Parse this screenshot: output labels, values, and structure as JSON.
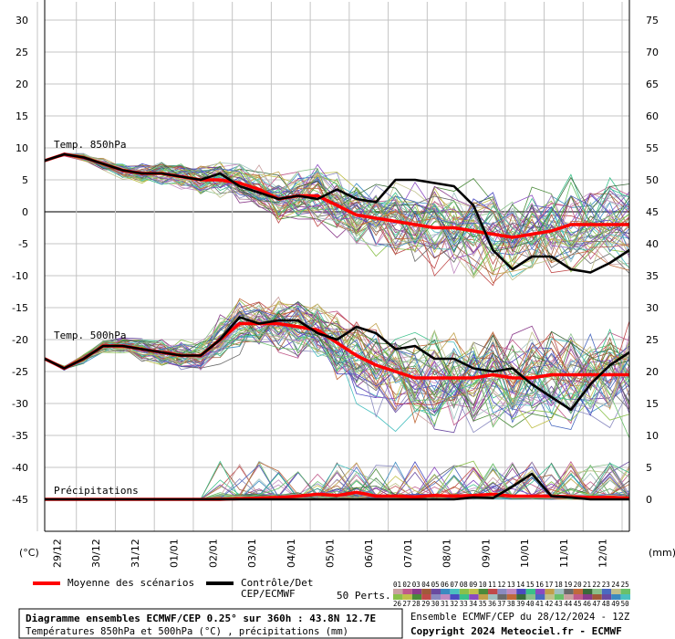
{
  "chart_data": {
    "type": "line",
    "title": "Diagramme ensembles ECMWF/CEP 0.25° sur 360h : 43.8N 12.7E",
    "subtitle": "Températures 850hPa et 500hPa (°C) , précipitations (mm)",
    "run_info": "Ensemble ECMWF/CEP du 28/12/2024 - 12Z",
    "copyright": "Copyright 2024 Meteociel.fr - ECMWF",
    "left_axis": {
      "label": "(°C)",
      "ticks": [
        30,
        25,
        20,
        15,
        10,
        5,
        0,
        -5,
        -10,
        -15,
        -20,
        -25,
        -30,
        -35,
        -40,
        -45
      ],
      "range": [
        -45,
        30
      ]
    },
    "right_axis": {
      "label": "(mm)",
      "ticks": [
        75,
        70,
        65,
        60,
        55,
        50,
        45,
        40,
        35,
        30,
        25,
        20,
        15,
        10,
        5,
        0
      ],
      "range": [
        0,
        75
      ]
    },
    "x_labels": [
      "29/12",
      "30/12",
      "31/12",
      "01/01",
      "02/01",
      "03/01",
      "04/01",
      "05/01",
      "06/01",
      "07/01",
      "08/01",
      "09/01",
      "10/01",
      "11/01",
      "12/01"
    ],
    "x_range": [
      0,
      15
    ],
    "grid": true,
    "panel_labels": {
      "t850": "Temp. 850hPa",
      "t500": "Temp. 500hPa",
      "precip": "Précipitations"
    },
    "legend": {
      "mean_label": "Moyenne des scénarios",
      "mean_color": "#ff0000",
      "control_label_1": "Contrôle/Det",
      "control_label_2": "CEP/ECMWF",
      "control_color": "#000000",
      "perts_label": "50 Perts.",
      "perts_row1": [
        "01",
        "02",
        "03",
        "04",
        "05",
        "06",
        "07",
        "08",
        "09",
        "10",
        "11",
        "12",
        "13",
        "14",
        "15",
        "16",
        "17",
        "18",
        "19",
        "20",
        "21",
        "22",
        "23",
        "24",
        "25"
      ],
      "perts_row2": [
        "26",
        "27",
        "28",
        "29",
        "30",
        "31",
        "32",
        "33",
        "34",
        "35",
        "36",
        "37",
        "38",
        "39",
        "40",
        "41",
        "42",
        "43",
        "44",
        "45",
        "46",
        "47",
        "48",
        "49",
        "50"
      ],
      "perts_colors": [
        "#c9a0a0",
        "#c05a8a",
        "#8a3a8a",
        "#a05a3a",
        "#6a4aa0",
        "#3a8ac0",
        "#4ac0c0",
        "#8ac04a",
        "#c0c04a",
        "#4a8a3a",
        "#c04a4a",
        "#8a8ac0",
        "#c08ac0",
        "#4a4ac0",
        "#3ac08a",
        "#8a4ac0",
        "#c0a04a",
        "#a0c0c0",
        "#6a6a6a",
        "#c06a3a",
        "#3a6a3a",
        "#8ac08a",
        "#4a6ac0",
        "#c0c08a",
        "#6ac06a"
      ]
    },
    "series": [
      {
        "name": "Moyenne des scénarios (850hPa)",
        "x": [
          0,
          0.5,
          1,
          1.5,
          2,
          2.5,
          3,
          3.5,
          4,
          4.5,
          5,
          5.5,
          6,
          6.5,
          7,
          7.5,
          8,
          8.5,
          9,
          9.5,
          10,
          10.5,
          11,
          11.5,
          12,
          12.5,
          13,
          13.5,
          14,
          14.5,
          15
        ],
        "y": [
          8,
          9,
          8.5,
          7.5,
          6.5,
          6,
          6,
          5.5,
          5,
          5,
          4.5,
          3.5,
          2,
          2.5,
          2.5,
          1,
          -0.5,
          -1,
          -1.5,
          -2,
          -2.5,
          -2.5,
          -3,
          -3.5,
          -4,
          -3.5,
          -3,
          -2,
          -2,
          -2,
          -2
        ]
      },
      {
        "name": "Contrôle/Det CEP/ECMWF (850hPa)",
        "x": [
          0,
          0.5,
          1,
          1.5,
          2,
          2.5,
          3,
          3.5,
          4,
          4.5,
          5,
          5.5,
          6,
          6.5,
          7,
          7.5,
          8,
          8.5,
          9,
          9.5,
          10,
          10.5,
          11,
          11.5,
          12,
          12.5,
          13,
          13.5,
          14,
          14.5,
          15
        ],
        "y": [
          8,
          9,
          8.5,
          7.5,
          6.5,
          6,
          6,
          5.5,
          5,
          6,
          4,
          3,
          2,
          2.5,
          2,
          3.5,
          2,
          1.5,
          5,
          5,
          4.5,
          4,
          1,
          -6,
          -9,
          -7,
          -7,
          -9,
          -9.5,
          -8,
          -6
        ]
      },
      {
        "name": "Moyenne des scénarios (500hPa)",
        "x": [
          0,
          0.5,
          1,
          1.5,
          2,
          2.5,
          3,
          3.5,
          4,
          4.5,
          5,
          5.5,
          6,
          6.5,
          7,
          7.5,
          8,
          8.5,
          9,
          9.5,
          10,
          10.5,
          11,
          11.5,
          12,
          12.5,
          13,
          13.5,
          14,
          14.5,
          15
        ],
        "y": [
          -23,
          -24.5,
          -23,
          -21,
          -21,
          -21.5,
          -22,
          -22.5,
          -22.5,
          -20,
          -17.5,
          -17.5,
          -17.5,
          -18,
          -18.5,
          -20.5,
          -22.5,
          -24,
          -25,
          -26,
          -26,
          -26,
          -26,
          -25.5,
          -26,
          -26,
          -25.5,
          -25.5,
          -25.5,
          -25.5,
          -25.5
        ]
      },
      {
        "name": "Contrôle/Det CEP/ECMWF (500hPa)",
        "x": [
          0,
          0.5,
          1,
          1.5,
          2,
          2.5,
          3,
          3.5,
          4,
          4.5,
          5,
          5.5,
          6,
          6.5,
          7,
          7.5,
          8,
          8.5,
          9,
          9.5,
          10,
          10.5,
          11,
          11.5,
          12,
          12.5,
          13,
          13.5,
          14,
          14.5,
          15
        ],
        "y": [
          -23,
          -24.5,
          -23,
          -21,
          -21,
          -21.5,
          -22,
          -22.5,
          -22.5,
          -20,
          -16.5,
          -17.5,
          -17,
          -17,
          -19,
          -20,
          -18,
          -19,
          -21.5,
          -21,
          -23,
          -23,
          -24.5,
          -25,
          -24.5,
          -27,
          -29,
          -31,
          -27,
          -24,
          -22
        ]
      },
      {
        "name": "Moyenne des scénarios (précipitations)",
        "x": [
          0,
          0.5,
          1,
          1.5,
          2,
          2.5,
          3,
          3.5,
          4,
          4.5,
          5,
          5.5,
          6,
          6.5,
          7,
          7.5,
          8,
          8.5,
          9,
          9.5,
          10,
          10.5,
          11,
          11.5,
          12,
          12.5,
          13,
          13.5,
          14,
          14.5,
          15
        ],
        "y": [
          0,
          0,
          0,
          0,
          0,
          0,
          0,
          0,
          0,
          0,
          0.1,
          0.2,
          0.3,
          0.5,
          0.8,
          0.6,
          1.1,
          0.5,
          0.5,
          0.4,
          0.6,
          0.5,
          0.6,
          0.8,
          0.5,
          0.5,
          0.5,
          0.4,
          0.3,
          0.3,
          0.2
        ]
      },
      {
        "name": "Contrôle/Det CEP/ECMWF (précipitations)",
        "x": [
          0,
          0.5,
          1,
          1.5,
          2,
          2.5,
          3,
          3.5,
          4,
          4.5,
          5,
          5.5,
          6,
          6.5,
          7,
          7.5,
          8,
          8.5,
          9,
          9.5,
          10,
          10.5,
          11,
          11.5,
          12,
          12.5,
          13,
          13.5,
          14,
          14.5,
          15
        ],
        "y": [
          0,
          0,
          0,
          0,
          0,
          0,
          0,
          0,
          0,
          0,
          0,
          0,
          0,
          0,
          0,
          0,
          0,
          0,
          0,
          0,
          0,
          0,
          0.3,
          0.2,
          2,
          4,
          0.5,
          0.3,
          0,
          0,
          0
        ]
      }
    ]
  }
}
